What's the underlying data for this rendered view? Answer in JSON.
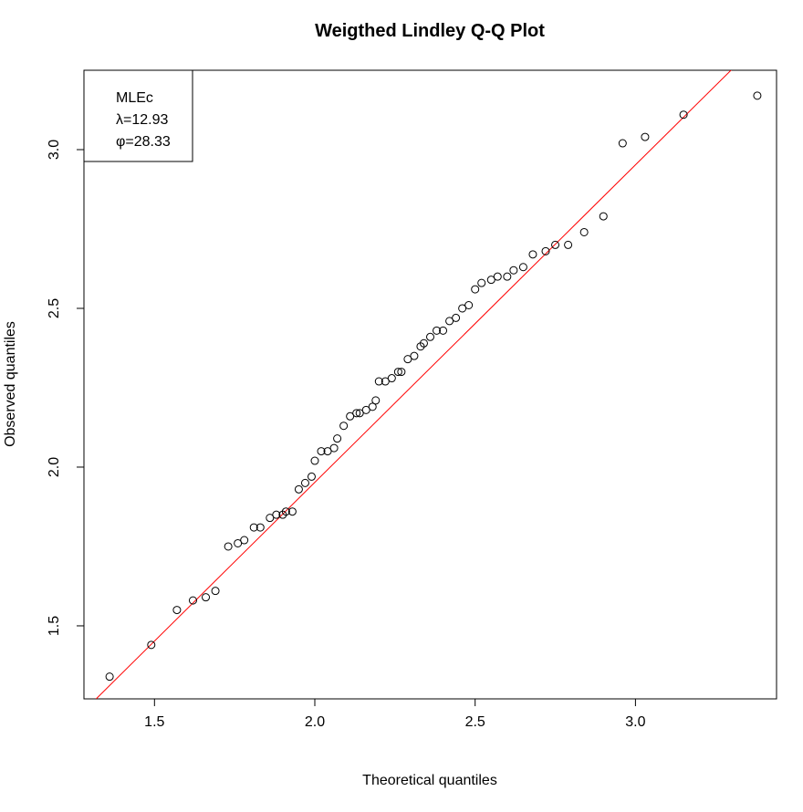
{
  "chart_data": {
    "type": "scatter",
    "title": "Weigthed Lindley Q-Q Plot",
    "xlabel": "Theoretical quantiles",
    "ylabel": "Observed quantiles",
    "xlim": [
      1.28,
      3.44
    ],
    "ylim": [
      1.27,
      3.25
    ],
    "xticks": [
      "1.5",
      "2.0",
      "2.5",
      "3.0"
    ],
    "yticks": [
      "1.5",
      "2.0",
      "2.5",
      "3.0"
    ],
    "grid": false,
    "legend": {
      "placement": "top-left",
      "lines": [
        "MLEc",
        "λ=12.93",
        "φ=28.33"
      ]
    },
    "reference_line": {
      "color": "#ff0000",
      "intercept": -0.048,
      "slope": 1.0
    },
    "point_color": "#000000",
    "points": [
      [
        1.36,
        1.34
      ],
      [
        1.49,
        1.44
      ],
      [
        1.57,
        1.55
      ],
      [
        1.62,
        1.58
      ],
      [
        1.66,
        1.59
      ],
      [
        1.69,
        1.61
      ],
      [
        1.73,
        1.75
      ],
      [
        1.76,
        1.76
      ],
      [
        1.78,
        1.77
      ],
      [
        1.81,
        1.81
      ],
      [
        1.83,
        1.81
      ],
      [
        1.86,
        1.84
      ],
      [
        1.88,
        1.85
      ],
      [
        1.9,
        1.85
      ],
      [
        1.91,
        1.86
      ],
      [
        1.93,
        1.86
      ],
      [
        1.95,
        1.93
      ],
      [
        1.97,
        1.95
      ],
      [
        1.99,
        1.97
      ],
      [
        2.0,
        2.02
      ],
      [
        2.02,
        2.05
      ],
      [
        2.04,
        2.05
      ],
      [
        2.06,
        2.06
      ],
      [
        2.07,
        2.09
      ],
      [
        2.09,
        2.13
      ],
      [
        2.11,
        2.16
      ],
      [
        2.13,
        2.17
      ],
      [
        2.14,
        2.17
      ],
      [
        2.16,
        2.18
      ],
      [
        2.18,
        2.19
      ],
      [
        2.19,
        2.21
      ],
      [
        2.2,
        2.27
      ],
      [
        2.22,
        2.27
      ],
      [
        2.24,
        2.28
      ],
      [
        2.26,
        2.3
      ],
      [
        2.27,
        2.3
      ],
      [
        2.29,
        2.34
      ],
      [
        2.31,
        2.35
      ],
      [
        2.33,
        2.38
      ],
      [
        2.34,
        2.39
      ],
      [
        2.36,
        2.41
      ],
      [
        2.38,
        2.43
      ],
      [
        2.4,
        2.43
      ],
      [
        2.42,
        2.46
      ],
      [
        2.44,
        2.47
      ],
      [
        2.46,
        2.5
      ],
      [
        2.48,
        2.51
      ],
      [
        2.5,
        2.56
      ],
      [
        2.52,
        2.58
      ],
      [
        2.55,
        2.59
      ],
      [
        2.57,
        2.6
      ],
      [
        2.6,
        2.6
      ],
      [
        2.62,
        2.62
      ],
      [
        2.65,
        2.63
      ],
      [
        2.68,
        2.67
      ],
      [
        2.72,
        2.68
      ],
      [
        2.75,
        2.7
      ],
      [
        2.79,
        2.7
      ],
      [
        2.84,
        2.74
      ],
      [
        2.9,
        2.79
      ],
      [
        2.96,
        3.02
      ],
      [
        3.03,
        3.04
      ],
      [
        3.15,
        3.11
      ],
      [
        3.38,
        3.17
      ]
    ]
  }
}
